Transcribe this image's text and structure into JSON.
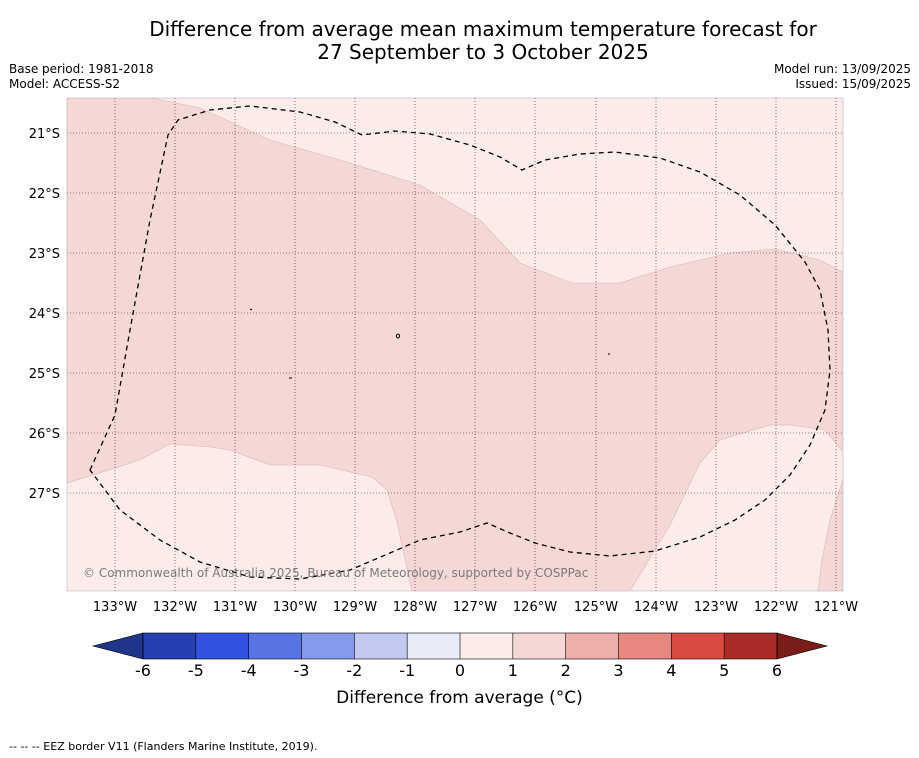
{
  "title_line1": "Difference from average mean maximum temperature forecast for",
  "title_line2": "27 September to 3 October 2025",
  "meta": {
    "base_period": "Base period: 1981-2018",
    "model": "Model: ACCESS-S2",
    "model_run": "Model run: 13/09/2025",
    "issued": "Issued: 15/09/2025"
  },
  "map": {
    "lat_labels": [
      "21°S",
      "22°S",
      "23°S",
      "24°S",
      "25°S",
      "26°S",
      "27°S"
    ],
    "lon_labels": [
      "133°W",
      "132°W",
      "131°W",
      "130°W",
      "129°W",
      "128°W",
      "127°W",
      "126°W",
      "125°W",
      "124°W",
      "123°W",
      "122°W",
      "121°W"
    ],
    "copyright": "© Commonwealth of Australia 2025, Bureau of Meteorology, supported by COSPPac",
    "colors": {
      "band_0_1": "#fbecea",
      "band_1_2": "#f5d7d5",
      "eez_line": "#000000"
    }
  },
  "colorbar": {
    "ticks": [
      "-6",
      "-5",
      "-4",
      "-3",
      "-2",
      "-1",
      "0",
      "1",
      "2",
      "3",
      "4",
      "5",
      "6"
    ],
    "colors": [
      "#1f3589",
      "#2540b0",
      "#3352e0",
      "#5873e2",
      "#8799ea",
      "#c2c9f2",
      "#e9ebf9",
      "#fbecea",
      "#f5d7d5",
      "#eeaeaa",
      "#e68780",
      "#d94a42",
      "#ab2b26",
      "#7a1c18"
    ],
    "label": "Difference from average (°C)"
  },
  "footnote": "--  --  -- EEZ border V11 (Flanders Marine Institute, 2019)."
}
